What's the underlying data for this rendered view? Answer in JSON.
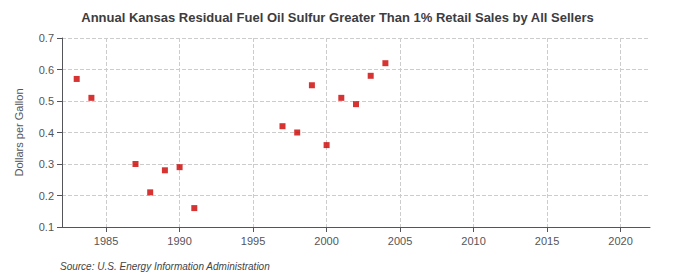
{
  "chart_data": {
    "type": "scatter",
    "title": "Annual Kansas Residual Fuel Oil Sulfur Greater Than 1% Retail Sales by All Sellers",
    "ylabel": "Dollars per Gallon",
    "annotations": [
      "Source: U.S. Energy Information Administration"
    ],
    "x": [
      1983,
      1984,
      1987,
      1988,
      1989,
      1990,
      1991,
      1997,
      1998,
      1999,
      2000,
      2001,
      2002,
      2003,
      2004
    ],
    "values": [
      0.57,
      0.51,
      0.3,
      0.21,
      0.28,
      0.29,
      0.16,
      0.42,
      0.4,
      0.55,
      0.36,
      0.51,
      0.49,
      0.58,
      0.62
    ],
    "color": "#cc0000",
    "marker": "square",
    "xlim": [
      1982,
      2022
    ],
    "ylim": [
      0.1,
      0.7
    ],
    "xticks": [
      1985,
      1990,
      1995,
      2000,
      2005,
      2010,
      2015,
      2020
    ],
    "yticks": [
      0.1,
      0.2,
      0.3,
      0.4,
      0.5,
      0.6,
      0.7
    ],
    "grid": true
  }
}
